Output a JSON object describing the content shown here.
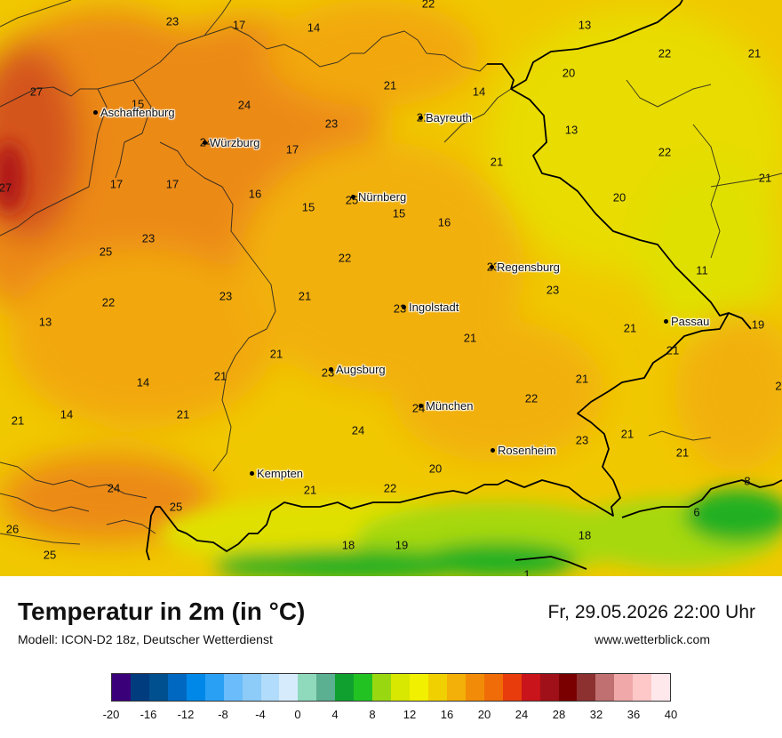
{
  "map": {
    "cities": [
      {
        "name": "Aschaffenburg"
      },
      {
        "name": "Würzburg"
      },
      {
        "name": "Bayreuth"
      },
      {
        "name": "Nürnberg"
      },
      {
        "name": "Regensburg"
      },
      {
        "name": "Ingolstadt"
      },
      {
        "name": "Passau"
      },
      {
        "name": "Augsburg"
      },
      {
        "name": "München"
      },
      {
        "name": "Rosenheim"
      },
      {
        "name": "Kempten"
      }
    ],
    "values": [
      "22",
      "23",
      "17",
      "14",
      "13",
      "22",
      "21",
      "20",
      "27",
      "15",
      "24",
      "23",
      "21",
      "14",
      "21",
      "24",
      "17",
      "21",
      "22",
      "27",
      "13",
      "17",
      "17",
      "16",
      "15",
      "25",
      "15",
      "16",
      "20",
      "21",
      "23",
      "22",
      "23",
      "25",
      "23",
      "21",
      "23",
      "23",
      "11",
      "13",
      "22",
      "21",
      "21",
      "19",
      "21",
      "21",
      "14",
      "23",
      "21",
      "21",
      "21",
      "14",
      "21",
      "24",
      "24",
      "22",
      "23",
      "21",
      "21",
      "20",
      "22",
      "24",
      "25",
      "26",
      "25",
      "18",
      "19",
      "18",
      "6",
      "8",
      "1",
      "2"
    ],
    "colors": {
      "hot": "#d4541e",
      "warm": "#ec8a12",
      "mid": "#f2b010",
      "yellow": "#f0c800",
      "lime": "#e0e000",
      "green": "#22b020",
      "border": "#000000"
    }
  },
  "footer": {
    "title": "Temperatur in 2m (in °C)",
    "subtitle": "Modell: ICON-D2 18z, Deutscher Wetterdienst",
    "datetime": "Fr, 29.05.2026 22:00 Uhr",
    "site": "www.wetterblick.com"
  },
  "legend": {
    "unit": "°C",
    "range": [
      -20,
      40
    ],
    "step": 2,
    "colors": [
      "#3a007a",
      "#003c7e",
      "#004f8e",
      "#0068c0",
      "#0088e8",
      "#2aa0f5",
      "#6abdfa",
      "#8dcbf8",
      "#b2dcfb",
      "#d6ecfd",
      "#8fd9bd",
      "#5ab090",
      "#10a030",
      "#23c223",
      "#99d810",
      "#d8e800",
      "#f0f000",
      "#f0d000",
      "#f3b008",
      "#f28c08",
      "#f06c08",
      "#e83c0c",
      "#c8141a",
      "#a01018",
      "#7a0000",
      "#8c3030",
      "#c07070",
      "#f0a8a8",
      "#ffc8c8",
      "#ffe8ec"
    ],
    "ticks": [
      "-20",
      "-16",
      "-12",
      "-8",
      "-4",
      "0",
      "4",
      "8",
      "12",
      "16",
      "20",
      "24",
      "28",
      "32",
      "36",
      "40"
    ]
  }
}
